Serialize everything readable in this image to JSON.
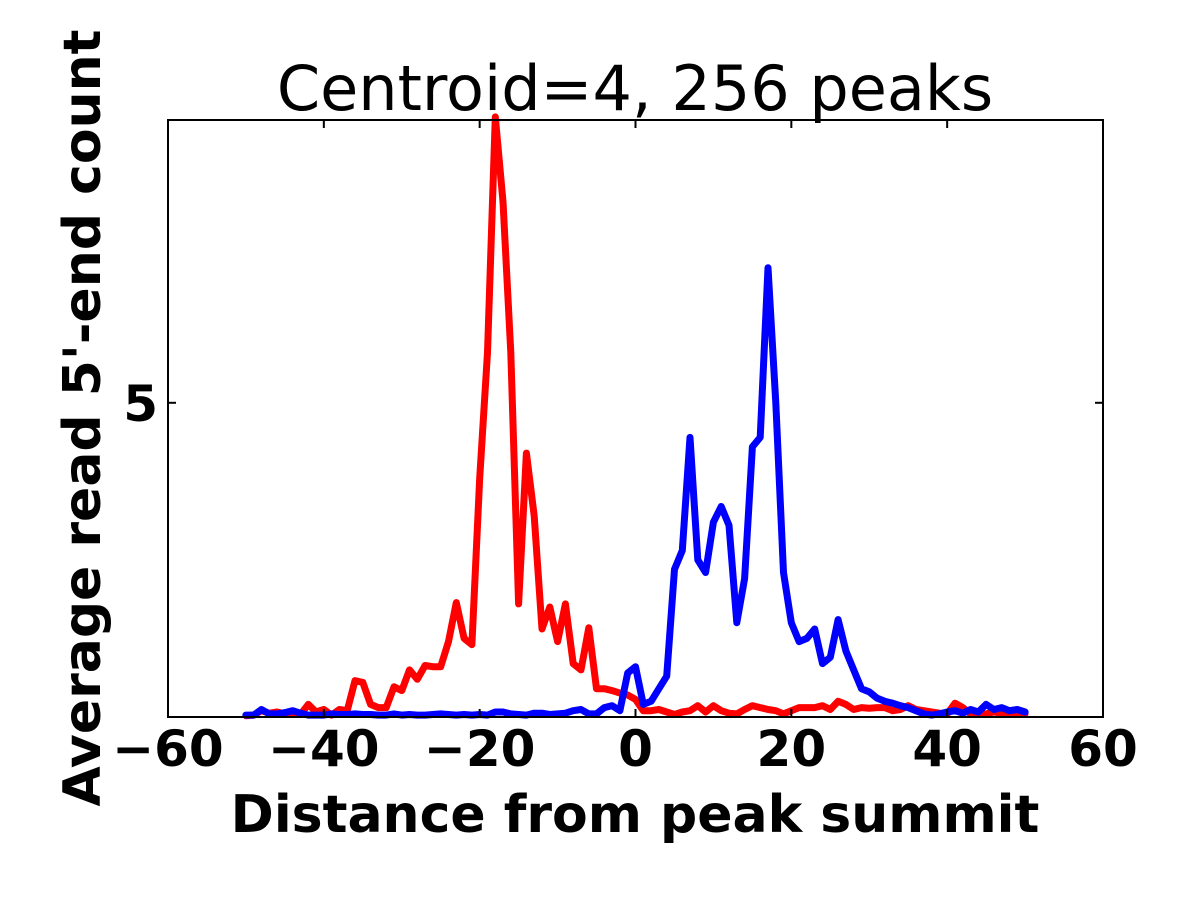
{
  "chart_data": {
    "type": "line",
    "title": "Centroid=4, 256 peaks",
    "xlabel": "Distance from peak summit",
    "ylabel": "Average read 5'-end count",
    "xlim": [
      -60,
      60
    ],
    "ylim": [
      0,
      9.5
    ],
    "x_ticks": [
      -60,
      -40,
      -20,
      0,
      20,
      40,
      60
    ],
    "x_tick_labels": [
      "−60",
      "−40",
      "−20",
      "0",
      "20",
      "40",
      "60"
    ],
    "y_ticks": [
      5
    ],
    "y_tick_labels": [
      "5"
    ],
    "grid": false,
    "legend": "none",
    "series": [
      {
        "color": "#ff0000",
        "x": [
          -50,
          -49,
          -48,
          -47,
          -46,
          -45,
          -44,
          -43,
          -42,
          -41,
          -40,
          -39,
          -38,
          -37,
          -36,
          -35,
          -34,
          -33,
          -32,
          -31,
          -30,
          -29,
          -28,
          -27,
          -26,
          -25,
          -24,
          -23,
          -22,
          -21,
          -20,
          -19,
          -18,
          -17,
          -16,
          -15,
          -14,
          -13,
          -12,
          -11,
          -10,
          -9,
          -8,
          -7,
          -6,
          -5,
          -4,
          -3,
          -2,
          -1,
          0,
          1,
          2,
          3,
          4,
          5,
          6,
          7,
          8,
          9,
          10,
          11,
          12,
          13,
          14,
          15,
          16,
          17,
          18,
          19,
          20,
          21,
          22,
          23,
          24,
          25,
          26,
          27,
          28,
          29,
          30,
          31,
          32,
          33,
          34,
          35,
          36,
          37,
          38,
          39,
          40,
          41,
          42,
          43,
          44,
          45,
          46,
          47,
          48,
          49,
          50
        ],
        "values": [
          0.02,
          0.03,
          0.1,
          0.06,
          0.08,
          0.05,
          0.05,
          0.04,
          0.2,
          0.08,
          0.12,
          0.03,
          0.12,
          0.1,
          0.58,
          0.55,
          0.2,
          0.15,
          0.15,
          0.48,
          0.42,
          0.75,
          0.6,
          0.82,
          0.8,
          0.8,
          1.2,
          1.82,
          1.25,
          1.15,
          3.8,
          5.8,
          9.55,
          8.2,
          5.8,
          1.8,
          4.2,
          3.2,
          1.4,
          1.75,
          1.2,
          1.8,
          0.85,
          0.75,
          1.42,
          0.45,
          0.45,
          0.42,
          0.38,
          0.35,
          0.28,
          0.1,
          0.1,
          0.12,
          0.08,
          0.04,
          0.08,
          0.1,
          0.18,
          0.08,
          0.18,
          0.1,
          0.06,
          0.05,
          0.12,
          0.18,
          0.15,
          0.12,
          0.1,
          0.05,
          0.1,
          0.15,
          0.15,
          0.15,
          0.18,
          0.12,
          0.25,
          0.2,
          0.12,
          0.15,
          0.14,
          0.15,
          0.15,
          0.1,
          0.12,
          0.18,
          0.12,
          0.1,
          0.08,
          0.06,
          0.05,
          0.22,
          0.15,
          0.05,
          0.05,
          0.05,
          0.08,
          0.06,
          0.04,
          0.04,
          0.05
        ]
      },
      {
        "color": "#0000ff",
        "x": [
          -50,
          -49,
          -48,
          -47,
          -46,
          -45,
          -44,
          -43,
          -42,
          -41,
          -40,
          -39,
          -38,
          -37,
          -36,
          -35,
          -34,
          -33,
          -32,
          -31,
          -30,
          -29,
          -28,
          -27,
          -26,
          -25,
          -24,
          -23,
          -22,
          -21,
          -20,
          -19,
          -18,
          -17,
          -16,
          -15,
          -14,
          -13,
          -12,
          -11,
          -10,
          -9,
          -8,
          -7,
          -6,
          -5,
          -4,
          -3,
          -2,
          -1,
          0,
          1,
          2,
          3,
          4,
          5,
          6,
          7,
          8,
          9,
          10,
          11,
          12,
          13,
          14,
          15,
          16,
          17,
          18,
          19,
          20,
          21,
          22,
          23,
          24,
          25,
          26,
          27,
          28,
          29,
          30,
          31,
          32,
          33,
          34,
          35,
          36,
          37,
          38,
          39,
          40,
          41,
          42,
          43,
          44,
          45,
          46,
          47,
          48,
          49,
          50
        ],
        "values": [
          0.03,
          0.03,
          0.12,
          0.05,
          0.05,
          0.07,
          0.1,
          0.06,
          0.03,
          0.03,
          0.03,
          0.05,
          0.04,
          0.04,
          0.05,
          0.04,
          0.04,
          0.03,
          0.03,
          0.05,
          0.03,
          0.04,
          0.03,
          0.03,
          0.04,
          0.05,
          0.04,
          0.03,
          0.04,
          0.03,
          0.04,
          0.03,
          0.08,
          0.08,
          0.05,
          0.04,
          0.03,
          0.06,
          0.06,
          0.04,
          0.05,
          0.06,
          0.1,
          0.12,
          0.05,
          0.05,
          0.15,
          0.18,
          0.1,
          0.7,
          0.8,
          0.2,
          0.25,
          0.45,
          0.65,
          2.35,
          2.65,
          4.45,
          2.5,
          2.3,
          3.1,
          3.35,
          3.05,
          1.5,
          2.2,
          4.3,
          4.45,
          7.15,
          5.0,
          2.3,
          1.5,
          1.2,
          1.25,
          1.4,
          0.85,
          0.95,
          1.55,
          1.05,
          0.75,
          0.45,
          0.4,
          0.3,
          0.25,
          0.22,
          0.18,
          0.15,
          0.1,
          0.05,
          0.03,
          0.05,
          0.08,
          0.1,
          0.06,
          0.12,
          0.08,
          0.2,
          0.12,
          0.15,
          0.1,
          0.12,
          0.08
        ]
      }
    ]
  }
}
